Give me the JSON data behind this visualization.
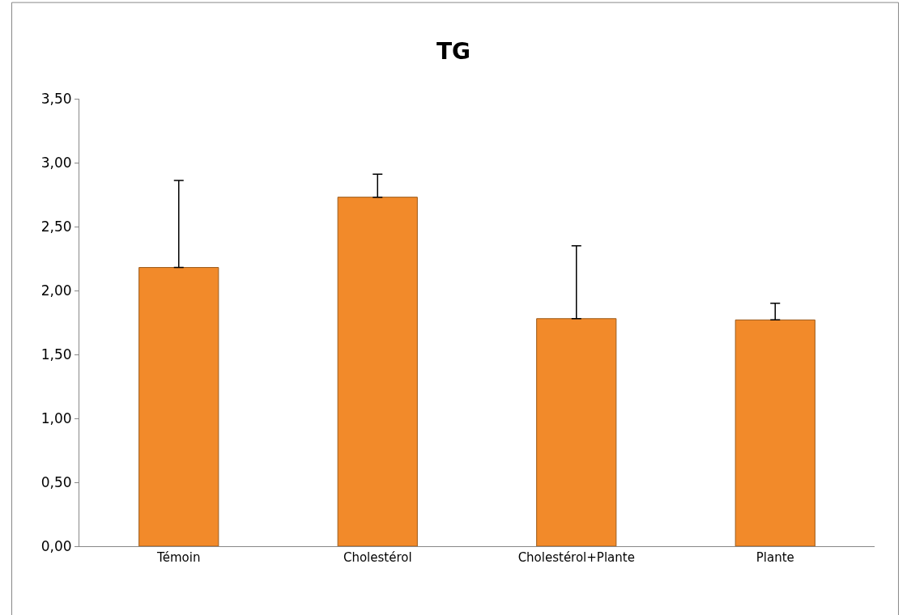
{
  "chart_data": {
    "type": "bar",
    "title": "TG",
    "categories": [
      "Témoin",
      "Cholestérol",
      "Cholestérol+Plante",
      "Plante"
    ],
    "values": [
      2.18,
      2.73,
      1.78,
      1.77
    ],
    "errors": [
      [
        2.18,
        2.86
      ],
      [
        2.73,
        2.91
      ],
      [
        1.78,
        2.35
      ],
      [
        1.77,
        1.9
      ]
    ],
    "color": "#f28a2a",
    "ylim": [
      0,
      3.5
    ],
    "yticks": [
      {
        "value": 0,
        "label": "0,00"
      },
      {
        "value": 0.5,
        "label": "0,50"
      },
      {
        "value": 1,
        "label": "1,00"
      },
      {
        "value": 1.5,
        "label": "1,50"
      },
      {
        "value": 2,
        "label": "2,00"
      },
      {
        "value": 2.5,
        "label": "2,50"
      },
      {
        "value": 3,
        "label": "3,00"
      },
      {
        "value": 3.5,
        "label": "3,50"
      }
    ],
    "grid": false
  }
}
